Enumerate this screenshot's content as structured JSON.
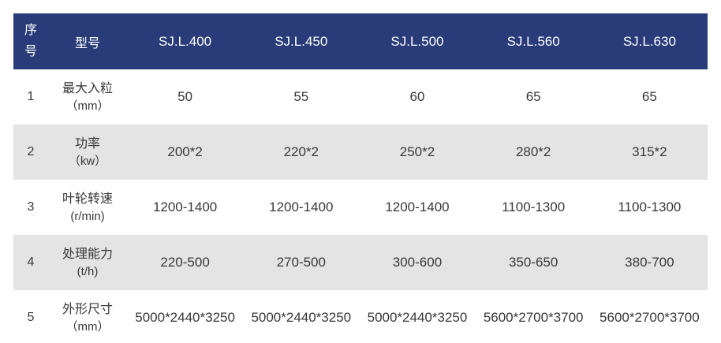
{
  "table": {
    "header": {
      "col_no": "序号",
      "col_label": "型号",
      "models": [
        "SJ.L.400",
        "SJ.L.450",
        "SJ.L.500",
        "SJ.L.560",
        "SJ.L.630"
      ]
    },
    "rows": [
      {
        "no": "1",
        "label": "最大入粒",
        "unit": "（mm）",
        "values": [
          "50",
          "55",
          "60",
          "65",
          "65"
        ]
      },
      {
        "no": "2",
        "label": "功率",
        "unit": "（kw）",
        "values": [
          "200*2",
          "220*2",
          "250*2",
          "280*2",
          "315*2"
        ]
      },
      {
        "no": "3",
        "label": "叶轮转速",
        "unit": "(r/min)",
        "values": [
          "1200-1400",
          "1200-1400",
          "1200-1400",
          "1100-1300",
          "1100-1300"
        ]
      },
      {
        "no": "4",
        "label": "处理能力",
        "unit": "(t/h)",
        "values": [
          "220-500",
          "270-500",
          "300-600",
          "350-650",
          "380-700"
        ]
      },
      {
        "no": "5",
        "label": "外形尺寸",
        "unit": "（mm）",
        "values": [
          "5000*2440*3250",
          "5000*2440*3250",
          "5000*2440*3250",
          "5600*2700*3700",
          "5600*2700*3700"
        ]
      }
    ],
    "colors": {
      "header_bg": "#293c79",
      "header_text": "#ffffff",
      "row_alt_bg": "#e4e4e4",
      "text": "#383838"
    }
  }
}
